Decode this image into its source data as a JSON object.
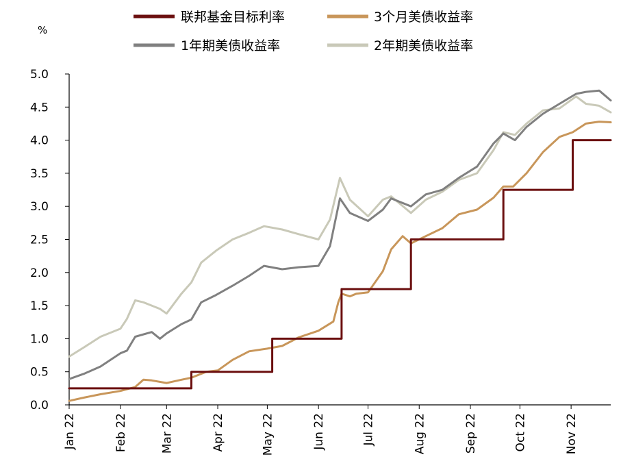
{
  "chart_data": {
    "type": "line",
    "unit_label": "%",
    "ylim": [
      0,
      5
    ],
    "yticks": [
      "0.0",
      "0.5",
      "1.0",
      "1.5",
      "2.0",
      "2.5",
      "3.0",
      "3.5",
      "4.0",
      "4.5",
      "5.0"
    ],
    "xticks": [
      "Jan 22",
      "Feb 22",
      "Mar 22",
      "Apr 22",
      "May 22",
      "Jun 22",
      "Jul 22",
      "Aug 22",
      "Sep 22",
      "Oct 22",
      "Nov 22"
    ],
    "xlim": [
      "2022-01-01",
      "2022-11-25"
    ],
    "grid": false,
    "legend_position": "top",
    "series": [
      {
        "name": "联邦基金目标利率",
        "color": "#6b0f0f",
        "step": true,
        "points": [
          [
            "2022-01-01",
            0.25
          ],
          [
            "2022-03-16",
            0.5
          ],
          [
            "2022-05-04",
            1.0
          ],
          [
            "2022-06-15",
            1.75
          ],
          [
            "2022-07-27",
            2.5
          ],
          [
            "2022-09-21",
            3.25
          ],
          [
            "2022-11-02",
            4.0
          ],
          [
            "2022-11-25",
            4.0
          ]
        ]
      },
      {
        "name": "3个月美债收益率",
        "color": "#c8965a",
        "points": [
          [
            "2022-01-01",
            0.06
          ],
          [
            "2022-01-10",
            0.11
          ],
          [
            "2022-01-20",
            0.16
          ],
          [
            "2022-02-01",
            0.21
          ],
          [
            "2022-02-10",
            0.27
          ],
          [
            "2022-02-15",
            0.38
          ],
          [
            "2022-02-20",
            0.37
          ],
          [
            "2022-03-01",
            0.33
          ],
          [
            "2022-03-10",
            0.38
          ],
          [
            "2022-03-16",
            0.41
          ],
          [
            "2022-03-25",
            0.5
          ],
          [
            "2022-04-01",
            0.52
          ],
          [
            "2022-04-10",
            0.68
          ],
          [
            "2022-04-20",
            0.81
          ],
          [
            "2022-05-01",
            0.85
          ],
          [
            "2022-05-10",
            0.89
          ],
          [
            "2022-05-20",
            1.02
          ],
          [
            "2022-06-01",
            1.12
          ],
          [
            "2022-06-10",
            1.26
          ],
          [
            "2022-06-13",
            1.55
          ],
          [
            "2022-06-15",
            1.68
          ],
          [
            "2022-06-20",
            1.64
          ],
          [
            "2022-06-24",
            1.68
          ],
          [
            "2022-07-01",
            1.7
          ],
          [
            "2022-07-10",
            2.02
          ],
          [
            "2022-07-15",
            2.35
          ],
          [
            "2022-07-22",
            2.55
          ],
          [
            "2022-07-27",
            2.44
          ],
          [
            "2022-08-05",
            2.55
          ],
          [
            "2022-08-15",
            2.67
          ],
          [
            "2022-08-25",
            2.88
          ],
          [
            "2022-09-05",
            2.95
          ],
          [
            "2022-09-15",
            3.13
          ],
          [
            "2022-09-21",
            3.3
          ],
          [
            "2022-09-27",
            3.3
          ],
          [
            "2022-10-05",
            3.5
          ],
          [
            "2022-10-15",
            3.82
          ],
          [
            "2022-10-25",
            4.05
          ],
          [
            "2022-11-02",
            4.12
          ],
          [
            "2022-11-10",
            4.25
          ],
          [
            "2022-11-18",
            4.28
          ],
          [
            "2022-11-25",
            4.27
          ]
        ]
      },
      {
        "name": "1年期美债收益率",
        "color": "#808080",
        "points": [
          [
            "2022-01-01",
            0.39
          ],
          [
            "2022-01-10",
            0.47
          ],
          [
            "2022-01-20",
            0.58
          ],
          [
            "2022-02-01",
            0.78
          ],
          [
            "2022-02-05",
            0.82
          ],
          [
            "2022-02-10",
            1.03
          ],
          [
            "2022-02-20",
            1.1
          ],
          [
            "2022-02-25",
            1.0
          ],
          [
            "2022-03-01",
            1.08
          ],
          [
            "2022-03-10",
            1.22
          ],
          [
            "2022-03-16",
            1.29
          ],
          [
            "2022-03-22",
            1.55
          ],
          [
            "2022-03-31",
            1.66
          ],
          [
            "2022-04-10",
            1.8
          ],
          [
            "2022-04-20",
            1.95
          ],
          [
            "2022-04-29",
            2.1
          ],
          [
            "2022-05-10",
            2.05
          ],
          [
            "2022-05-20",
            2.08
          ],
          [
            "2022-06-01",
            2.1
          ],
          [
            "2022-06-08",
            2.4
          ],
          [
            "2022-06-14",
            3.12
          ],
          [
            "2022-06-20",
            2.9
          ],
          [
            "2022-07-01",
            2.78
          ],
          [
            "2022-07-10",
            2.95
          ],
          [
            "2022-07-15",
            3.12
          ],
          [
            "2022-07-27",
            3.0
          ],
          [
            "2022-08-05",
            3.18
          ],
          [
            "2022-08-15",
            3.25
          ],
          [
            "2022-08-25",
            3.43
          ],
          [
            "2022-09-05",
            3.6
          ],
          [
            "2022-09-15",
            3.95
          ],
          [
            "2022-09-21",
            4.1
          ],
          [
            "2022-09-28",
            4.0
          ],
          [
            "2022-10-05",
            4.2
          ],
          [
            "2022-10-15",
            4.4
          ],
          [
            "2022-10-25",
            4.55
          ],
          [
            "2022-11-04",
            4.7
          ],
          [
            "2022-11-10",
            4.73
          ],
          [
            "2022-11-18",
            4.75
          ],
          [
            "2022-11-25",
            4.6
          ]
        ]
      },
      {
        "name": "2年期美债收益率",
        "color": "#c9c9b8",
        "points": [
          [
            "2022-01-01",
            0.73
          ],
          [
            "2022-01-10",
            0.87
          ],
          [
            "2022-01-20",
            1.03
          ],
          [
            "2022-02-01",
            1.15
          ],
          [
            "2022-02-05",
            1.3
          ],
          [
            "2022-02-10",
            1.58
          ],
          [
            "2022-02-15",
            1.55
          ],
          [
            "2022-02-20",
            1.5
          ],
          [
            "2022-02-25",
            1.45
          ],
          [
            "2022-03-01",
            1.38
          ],
          [
            "2022-03-10",
            1.68
          ],
          [
            "2022-03-16",
            1.85
          ],
          [
            "2022-03-22",
            2.15
          ],
          [
            "2022-03-31",
            2.33
          ],
          [
            "2022-04-10",
            2.5
          ],
          [
            "2022-04-20",
            2.6
          ],
          [
            "2022-04-29",
            2.7
          ],
          [
            "2022-05-10",
            2.65
          ],
          [
            "2022-05-20",
            2.58
          ],
          [
            "2022-06-01",
            2.5
          ],
          [
            "2022-06-08",
            2.8
          ],
          [
            "2022-06-14",
            3.43
          ],
          [
            "2022-06-20",
            3.1
          ],
          [
            "2022-07-01",
            2.85
          ],
          [
            "2022-07-10",
            3.1
          ],
          [
            "2022-07-15",
            3.15
          ],
          [
            "2022-07-27",
            2.9
          ],
          [
            "2022-08-05",
            3.1
          ],
          [
            "2022-08-15",
            3.22
          ],
          [
            "2022-08-25",
            3.4
          ],
          [
            "2022-09-05",
            3.5
          ],
          [
            "2022-09-15",
            3.85
          ],
          [
            "2022-09-21",
            4.12
          ],
          [
            "2022-09-28",
            4.08
          ],
          [
            "2022-10-05",
            4.25
          ],
          [
            "2022-10-15",
            4.45
          ],
          [
            "2022-10-25",
            4.48
          ],
          [
            "2022-11-04",
            4.66
          ],
          [
            "2022-11-10",
            4.55
          ],
          [
            "2022-11-18",
            4.52
          ],
          [
            "2022-11-25",
            4.42
          ]
        ]
      }
    ]
  }
}
